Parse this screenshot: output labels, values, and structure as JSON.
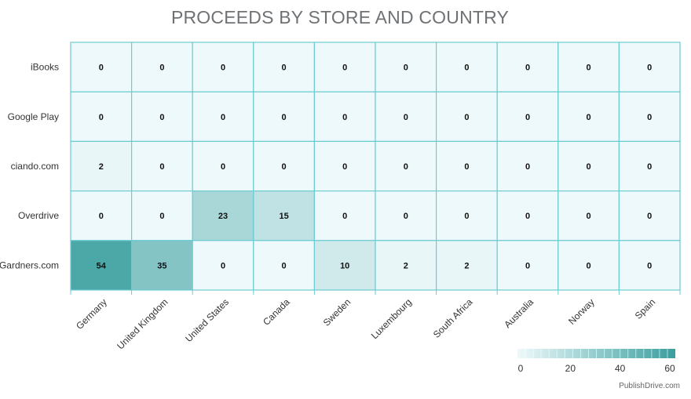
{
  "chart_data": {
    "type": "heatmap",
    "title": "PROCEEDS BY STORE AND COUNTRY",
    "x_categories": [
      "Germany",
      "United Kingdom",
      "United States",
      "Canada",
      "Sweden",
      "Luxembourg",
      "South Africa",
      "Australia",
      "Norway",
      "Spain"
    ],
    "y_categories": [
      "iBooks",
      "Google Play",
      "ciando.com",
      "Overdrive",
      "Gardners.com"
    ],
    "values": [
      [
        0,
        0,
        0,
        0,
        0,
        0,
        0,
        0,
        0,
        0
      ],
      [
        0,
        0,
        0,
        0,
        0,
        0,
        0,
        0,
        0,
        0
      ],
      [
        2,
        0,
        0,
        0,
        0,
        0,
        0,
        0,
        0,
        0
      ],
      [
        0,
        0,
        23,
        15,
        0,
        0,
        0,
        0,
        0,
        0
      ],
      [
        54,
        35,
        0,
        0,
        10,
        2,
        2,
        0,
        0,
        0
      ]
    ],
    "color_scale": {
      "min": 0,
      "max": 60,
      "min_color": "#eef9fb",
      "max_color": "#3a9e9e",
      "ticks": [
        0,
        20,
        40,
        60
      ]
    },
    "grid_color": "#6ccbd3",
    "legend_position": "bottom-right"
  },
  "credit": "PublishDrive.com"
}
